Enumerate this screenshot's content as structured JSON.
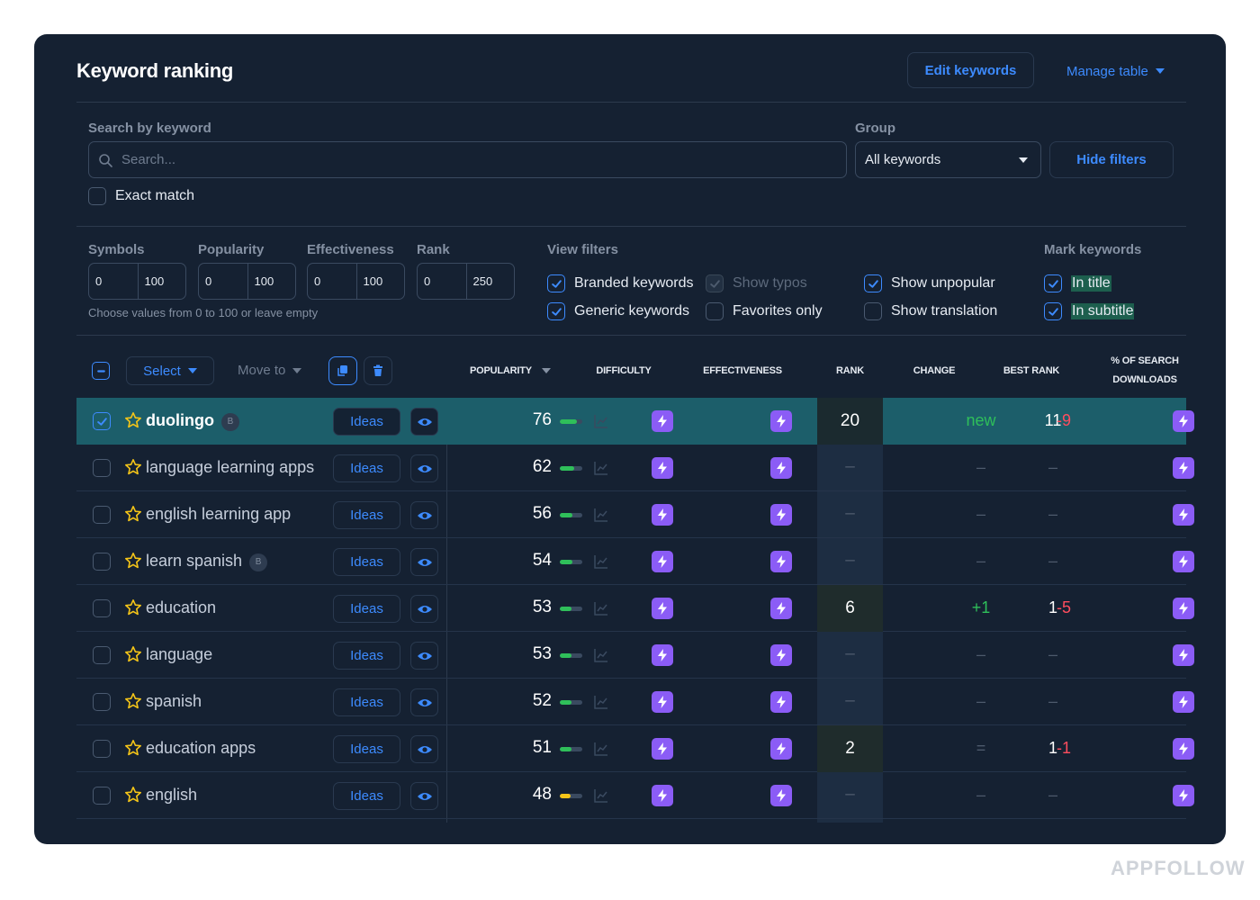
{
  "header": {
    "title": "Keyword ranking",
    "edit_keywords": "Edit keywords",
    "manage_table": "Manage table"
  },
  "filters": {
    "search_label": "Search by keyword",
    "search_placeholder": "Search...",
    "group_label": "Group",
    "group_value": "All keywords",
    "hide_filters": "Hide filters",
    "exact_match": "Exact match"
  },
  "ranges": {
    "symbols": {
      "label": "Symbols",
      "min": "0",
      "max": "100"
    },
    "popularity": {
      "label": "Popularity",
      "min": "0",
      "max": "100"
    },
    "effectiveness": {
      "label": "Effectiveness",
      "min": "0",
      "max": "100"
    },
    "rank": {
      "label": "Rank",
      "min": "0",
      "max": "250"
    },
    "hint": "Choose values from 0 to 100 or leave empty"
  },
  "view_filters": {
    "label": "View filters",
    "branded": "Branded keywords",
    "generic": "Generic keywords",
    "typos": "Show typos",
    "favorites": "Favorites only",
    "unpopular": "Show unpopular",
    "translation": "Show translation"
  },
  "mark_keywords": {
    "label": "Mark keywords",
    "in_title": "In title",
    "in_subtitle": "In subtitle"
  },
  "toolbar": {
    "select": "Select",
    "move_to": "Move to"
  },
  "columns": {
    "popularity": "POPULARITY",
    "difficulty": "DIFFICULTY",
    "effectiveness": "EFFECTIVENESS",
    "rank": "RANK",
    "change": "CHANGE",
    "best_rank": "BEST RANK",
    "downloads_1": "% OF SEARCH",
    "downloads_2": "DOWNLOADS"
  },
  "ideas_label": "Ideas",
  "badge_label": "B",
  "rows": [
    {
      "keyword": "duolingo",
      "badge": true,
      "popularity": "76",
      "pop_pct": 76,
      "bar_color": "#2fbf5a",
      "rank": "20",
      "change": "new",
      "change_type": "green",
      "best": "11",
      "best_delta": "-9",
      "selected": true
    },
    {
      "keyword": "language learning apps",
      "badge": false,
      "popularity": "62",
      "pop_pct": 62,
      "bar_color": "#2fbf5a",
      "rank": "–",
      "change": "–",
      "change_type": "dash",
      "best": "–",
      "best_delta": "",
      "selected": false
    },
    {
      "keyword": "english learning app",
      "badge": false,
      "popularity": "56",
      "pop_pct": 56,
      "bar_color": "#2fbf5a",
      "rank": "–",
      "change": "–",
      "change_type": "dash",
      "best": "–",
      "best_delta": "",
      "selected": false
    },
    {
      "keyword": "learn spanish",
      "badge": true,
      "popularity": "54",
      "pop_pct": 54,
      "bar_color": "#2fbf5a",
      "rank": "–",
      "change": "–",
      "change_type": "dash",
      "best": "–",
      "best_delta": "",
      "selected": false
    },
    {
      "keyword": "education",
      "badge": false,
      "popularity": "53",
      "pop_pct": 53,
      "bar_color": "#2fbf5a",
      "rank": "6",
      "change": "+1",
      "change_type": "green",
      "best": "1",
      "best_delta": "-5",
      "selected": false
    },
    {
      "keyword": "language",
      "badge": false,
      "popularity": "53",
      "pop_pct": 53,
      "bar_color": "#2fbf5a",
      "rank": "–",
      "change": "–",
      "change_type": "dash",
      "best": "–",
      "best_delta": "",
      "selected": false
    },
    {
      "keyword": "spanish",
      "badge": false,
      "popularity": "52",
      "pop_pct": 52,
      "bar_color": "#2fbf5a",
      "rank": "–",
      "change": "–",
      "change_type": "dash",
      "best": "–",
      "best_delta": "",
      "selected": false
    },
    {
      "keyword": "education apps",
      "badge": false,
      "popularity": "51",
      "pop_pct": 51,
      "bar_color": "#2fbf5a",
      "rank": "2",
      "change": "=",
      "change_type": "equal",
      "best": "1",
      "best_delta": "-1",
      "selected": false
    },
    {
      "keyword": "english",
      "badge": false,
      "popularity": "48",
      "pop_pct": 48,
      "bar_color": "#f5c518",
      "rank": "–",
      "change": "–",
      "change_type": "dash",
      "best": "–",
      "best_delta": "",
      "selected": false
    }
  ],
  "watermark": "APPFOLLOW",
  "icons": {
    "star": "star-icon",
    "eye": "eye-icon",
    "bolt": "bolt-icon",
    "trend": "trend-icon",
    "copy": "copy-icon",
    "trash": "trash-icon",
    "search": "search-icon"
  },
  "colors": {
    "panel": "#152132",
    "accent": "#3d8bff",
    "selected_row": "#1c5e6a",
    "bolt": "#8b5cf6",
    "positive": "#2fbf5a",
    "negative": "#ff4d5e",
    "star": "#f5c518"
  }
}
